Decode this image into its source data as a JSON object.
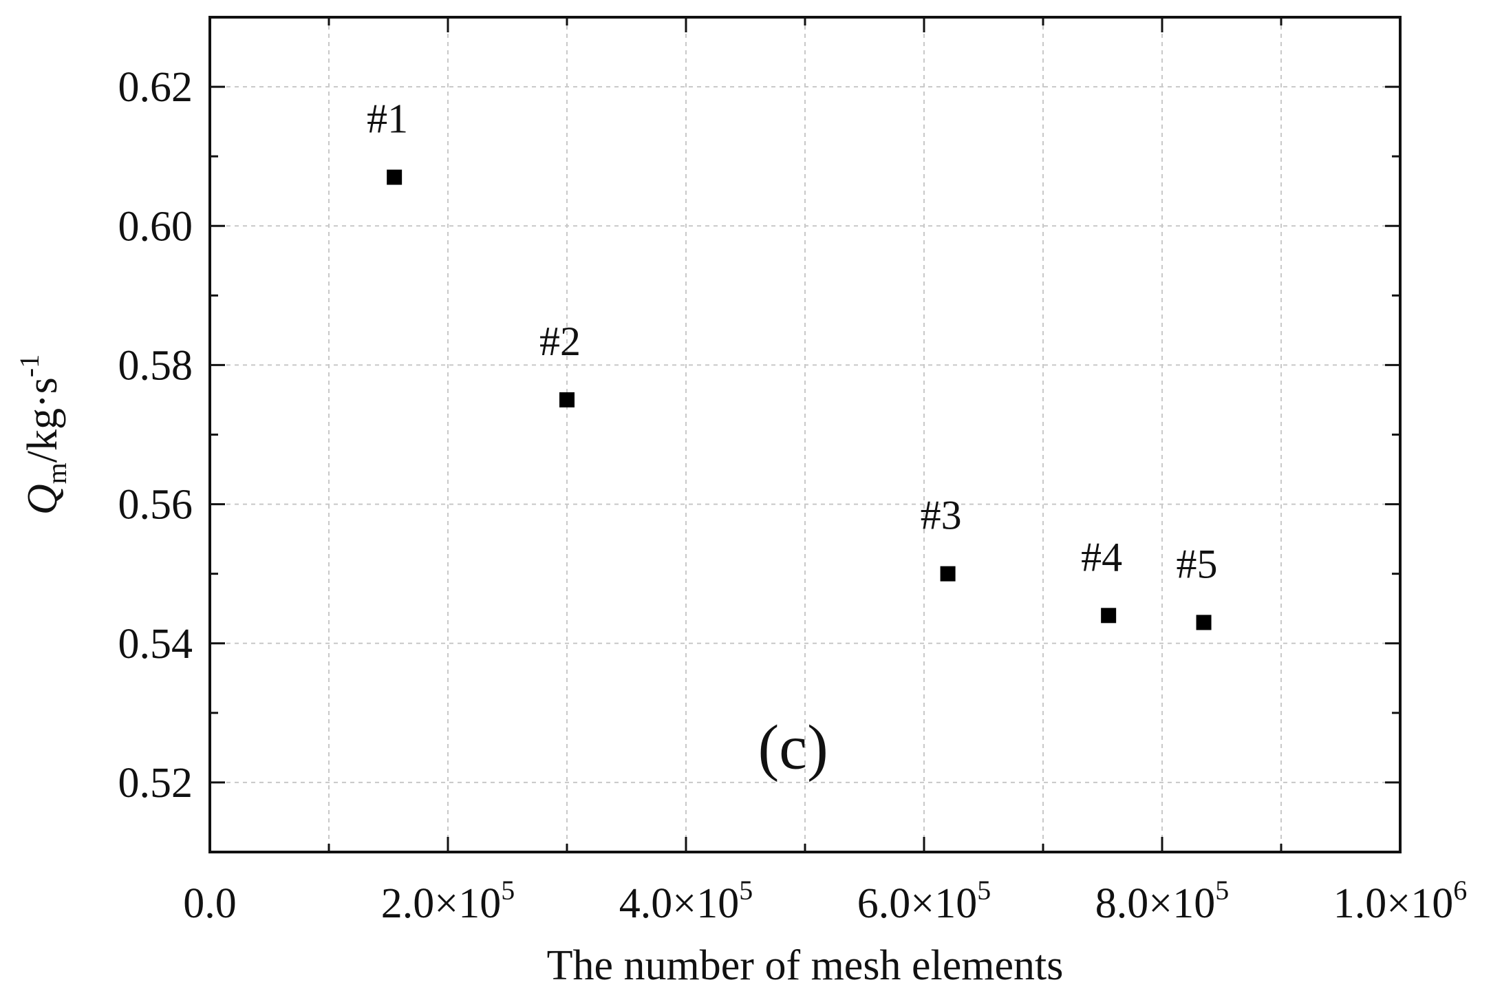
{
  "chart_data": {
    "type": "scatter",
    "title": "",
    "xlabel": "The number of mesh elements",
    "ylabel": {
      "symbol": "Q",
      "subscript": "m",
      "unit": "/kg·s",
      "superscript": "-1"
    },
    "panel_label": "(c)",
    "xlim": [
      0,
      1000000
    ],
    "ylim": [
      0.51,
      0.63
    ],
    "x_ticks": [
      {
        "value": 0,
        "mantissa": "0.0",
        "exponent": ""
      },
      {
        "value": 200000,
        "mantissa": "2.0×10",
        "exponent": "5"
      },
      {
        "value": 400000,
        "mantissa": "4.0×10",
        "exponent": "5"
      },
      {
        "value": 600000,
        "mantissa": "6.0×10",
        "exponent": "5"
      },
      {
        "value": 800000,
        "mantissa": "8.0×10",
        "exponent": "5"
      },
      {
        "value": 1000000,
        "mantissa": "1.0×10",
        "exponent": "6"
      }
    ],
    "y_ticks": [
      {
        "value": 0.52,
        "label": "0.52"
      },
      {
        "value": 0.54,
        "label": "0.54"
      },
      {
        "value": 0.56,
        "label": "0.56"
      },
      {
        "value": 0.58,
        "label": "0.58"
      },
      {
        "value": 0.6,
        "label": "0.60"
      },
      {
        "value": 0.62,
        "label": "0.62"
      }
    ],
    "grid": true,
    "marker_color": "#000000",
    "grid_color": "#c8c8c8",
    "points": [
      {
        "label": "#1",
        "x": 155000,
        "y": 0.607
      },
      {
        "label": "#2",
        "x": 300000,
        "y": 0.575
      },
      {
        "label": "#3",
        "x": 620000,
        "y": 0.55
      },
      {
        "label": "#4",
        "x": 755000,
        "y": 0.544
      },
      {
        "label": "#5",
        "x": 835000,
        "y": 0.543
      }
    ]
  }
}
